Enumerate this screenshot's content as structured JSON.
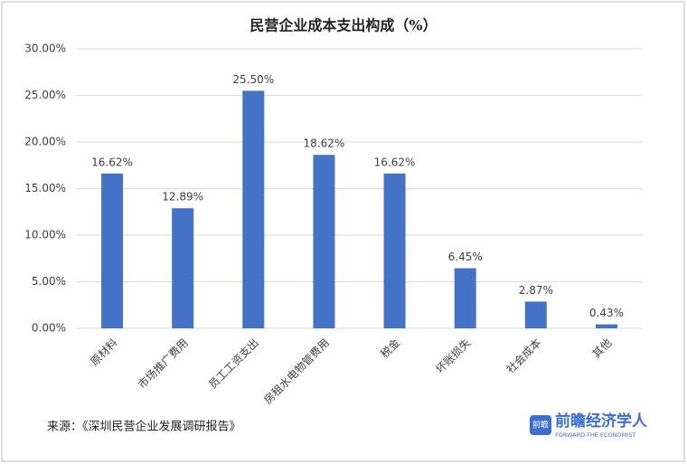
{
  "chart_data": {
    "type": "bar",
    "title": "民营企业成本支出构成（%）",
    "categories": [
      "原材料",
      "市场推广费用",
      "员工工资支出",
      "房租水电物管费用",
      "税金",
      "坏账损失",
      "社会成本",
      "其他"
    ],
    "values": [
      16.62,
      12.89,
      25.5,
      18.62,
      16.62,
      6.45,
      2.87,
      0.43
    ],
    "value_labels": [
      "16.62%",
      "12.89%",
      "25.50%",
      "18.62%",
      "16.62%",
      "6.45%",
      "2.87%",
      "0.43%"
    ],
    "color": "#4472c4",
    "ylim": [
      0,
      30
    ],
    "yticks": [
      {
        "value": 0,
        "label": "0.00%"
      },
      {
        "value": 5,
        "label": "5.00%"
      },
      {
        "value": 10,
        "label": "10.00%"
      },
      {
        "value": 15,
        "label": "15.00%"
      },
      {
        "value": 20,
        "label": "20.00%"
      },
      {
        "value": 25,
        "label": "25.00%"
      },
      {
        "value": 30,
        "label": "30.00%"
      }
    ],
    "grid": true,
    "source": "来源：《深圳民营企业发展调研报告》",
    "logo": {
      "icon": "前瞻",
      "name": "前瞻经济学人",
      "tagline": "FORWARD-THE ECONOMIST"
    }
  }
}
